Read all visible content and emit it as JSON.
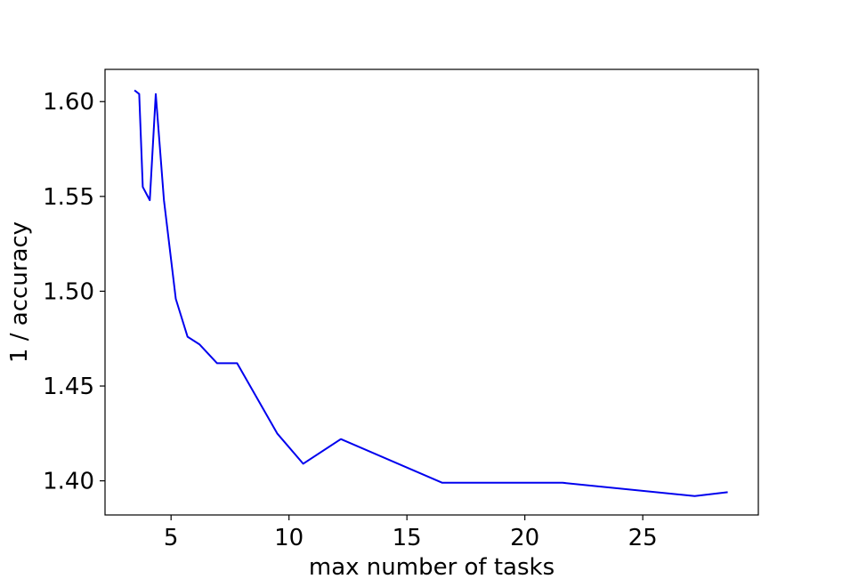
{
  "chart_data": {
    "type": "line",
    "title": "",
    "xlabel": "max number of tasks",
    "ylabel": "1 / accuracy",
    "xlim": [
      2.2,
      29.9
    ],
    "ylim": [
      1.382,
      1.617
    ],
    "xticks": [
      5,
      10,
      15,
      20,
      25
    ],
    "xtick_labels": [
      "5",
      "10",
      "15",
      "20",
      "25"
    ],
    "yticks": [
      1.4,
      1.45,
      1.5,
      1.55,
      1.6
    ],
    "ytick_labels": [
      "1.40",
      "1.45",
      "1.50",
      "1.55",
      "1.60"
    ],
    "grid": false,
    "legend": "none",
    "series": [
      {
        "color": "#0000ee",
        "x": [
          3.45,
          3.65,
          3.8,
          4.1,
          4.35,
          4.7,
          5.2,
          5.7,
          6.2,
          6.95,
          7.8,
          9.5,
          10.6,
          12.2,
          16.5,
          21.6,
          27.2,
          28.6
        ],
        "y": [
          1.606,
          1.604,
          1.555,
          1.548,
          1.604,
          1.548,
          1.496,
          1.476,
          1.472,
          1.462,
          1.462,
          1.425,
          1.409,
          1.422,
          1.399,
          1.399,
          1.392,
          1.394
        ]
      }
    ]
  }
}
